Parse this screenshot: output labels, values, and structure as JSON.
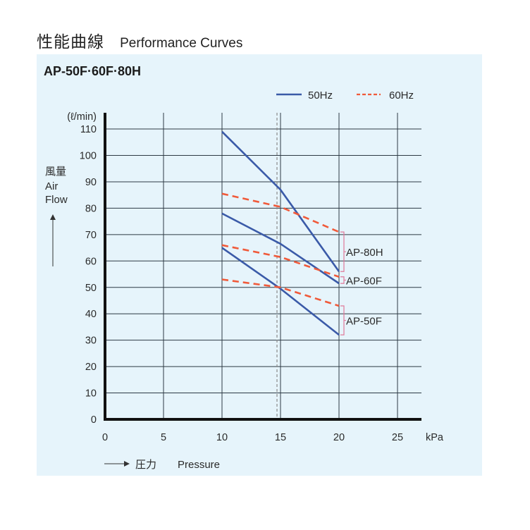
{
  "page": {
    "title_jp": "性能曲線",
    "title_en": "Performance Curves"
  },
  "chart_data": {
    "type": "line",
    "title": "AP-50F·60F·80H",
    "xlabel": "Pressure",
    "xlabel_jp": "圧力",
    "x_unit": "kPa",
    "ylabel": "Air Flow",
    "ylabel_jp": "風量",
    "y_unit": "(ℓ/min)",
    "xlim": [
      0,
      27
    ],
    "ylim": [
      0,
      110
    ],
    "x_ticks": [
      0,
      5,
      10,
      15,
      20,
      25
    ],
    "y_ticks": [
      0,
      10,
      20,
      30,
      40,
      50,
      60,
      70,
      80,
      90,
      100,
      110
    ],
    "grid": true,
    "legend": {
      "position": "top-right",
      "entries": [
        {
          "label": "50Hz",
          "style": "solid",
          "color": "#3a5aa8"
        },
        {
          "label": "60Hz",
          "style": "dashed",
          "color": "#f05a3a"
        }
      ]
    },
    "reference_line": {
      "x": 14.7,
      "style": "dashed",
      "color": "#8a8a8a"
    },
    "series": [
      {
        "name": "AP-80H 50Hz",
        "model": "AP-80H",
        "freq": "50Hz",
        "x": [
          10,
          15,
          20
        ],
        "y": [
          109,
          87,
          56
        ]
      },
      {
        "name": "AP-80H 60Hz",
        "model": "AP-80H",
        "freq": "60Hz",
        "x": [
          10,
          15,
          20
        ],
        "y": [
          85.5,
          80.5,
          71
        ]
      },
      {
        "name": "AP-60F 50Hz",
        "model": "AP-60F",
        "freq": "50Hz",
        "x": [
          10,
          15,
          20
        ],
        "y": [
          78,
          66.5,
          51.5
        ]
      },
      {
        "name": "AP-60F 60Hz",
        "model": "AP-60F",
        "freq": "60Hz",
        "x": [
          10,
          15,
          20
        ],
        "y": [
          66,
          61.5,
          54
        ]
      },
      {
        "name": "AP-50F 50Hz",
        "model": "AP-50F",
        "freq": "50Hz",
        "x": [
          10,
          15,
          20
        ],
        "y": [
          65,
          49.5,
          32
        ]
      },
      {
        "name": "AP-50F 60Hz",
        "model": "AP-50F",
        "freq": "60Hz",
        "x": [
          10,
          15,
          20
        ],
        "y": [
          53,
          50,
          43
        ]
      }
    ],
    "annotations": [
      {
        "label": "AP-80H",
        "x": 20,
        "y_range": [
          56,
          71
        ]
      },
      {
        "label": "AP-60F",
        "x": 20,
        "y_range": [
          51.5,
          54
        ]
      },
      {
        "label": "AP-50F",
        "x": 20,
        "y_range": [
          32,
          43
        ]
      }
    ]
  }
}
